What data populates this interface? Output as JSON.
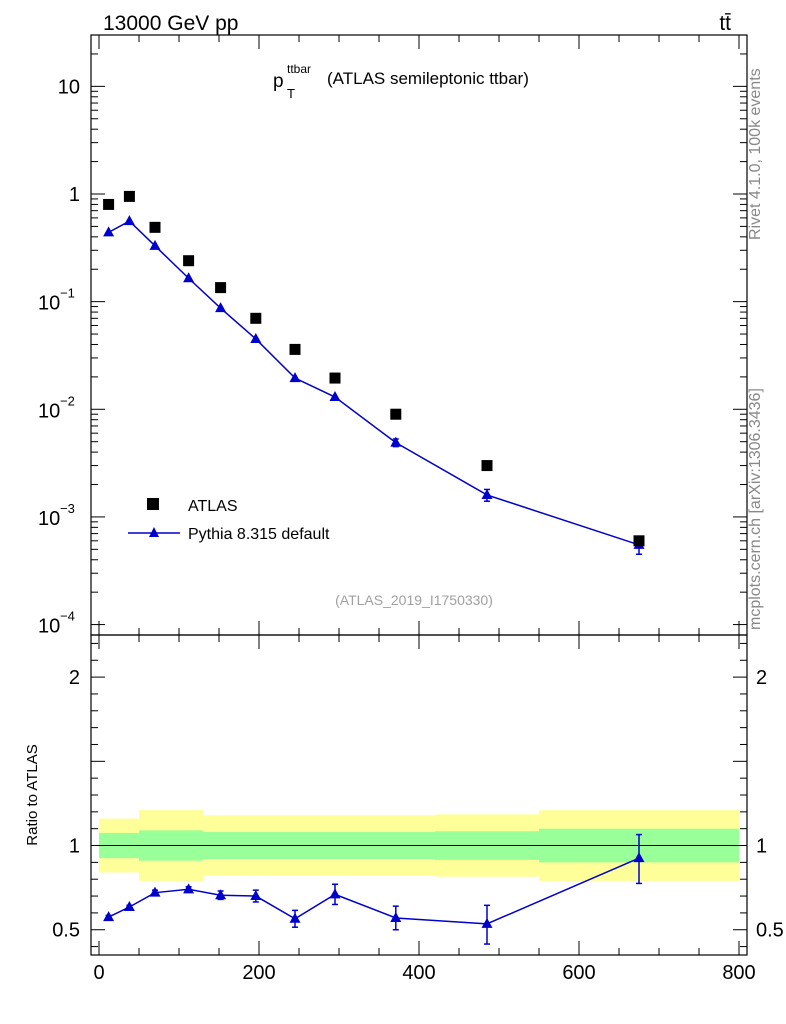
{
  "header": {
    "beam_label": "13000 GeV pp",
    "process_label": "tt̄"
  },
  "plot_title": {
    "var_main": "p",
    "var_sup": "ttbar",
    "var_sub": "T",
    "suffix": "(ATLAS semileptonic ttbar)"
  },
  "side_labels": {
    "rivet": "Rivet 4.1.0,  100k events",
    "mcplots": "mcplots.cern.ch [arXiv:1306.3436]"
  },
  "analysis_id": "(ATLAS_2019_I1750330)",
  "legend": {
    "data_label": "ATLAS",
    "mc_label": "Pythia 8.315 default"
  },
  "ratio_ylabel": "Ratio to ATLAS",
  "colors": {
    "mc": "#0000cc",
    "band_inner": "#99ff99",
    "band_outer": "#ffff99",
    "data": "#000000"
  },
  "chart_data": [
    {
      "type": "scatter",
      "panel": "main",
      "yscale": "log",
      "xlim": [
        -10,
        810
      ],
      "ylim": [
        8e-05,
        30
      ],
      "y_ticks": [
        {
          "value": 10,
          "label": "10"
        },
        {
          "value": 1,
          "label": "1"
        },
        {
          "value": 0.1,
          "base": "10",
          "exp": "−1"
        },
        {
          "value": 0.01,
          "base": "10",
          "exp": "−2"
        },
        {
          "value": 0.001,
          "base": "10",
          "exp": "−3"
        },
        {
          "value": 0.0001,
          "base": "10",
          "exp": "−4"
        }
      ],
      "series": [
        {
          "name": "ATLAS",
          "marker": "square",
          "x": [
            12,
            38,
            70,
            112,
            152,
            196,
            245,
            295,
            371,
            485,
            675
          ],
          "y": [
            0.8,
            0.95,
            0.49,
            0.24,
            0.135,
            0.07,
            0.036,
            0.0195,
            0.009,
            0.003,
            0.0006
          ]
        },
        {
          "name": "Pythia 8.315 default",
          "marker": "triangle",
          "x": [
            12,
            38,
            70,
            112,
            152,
            196,
            245,
            295,
            371,
            485,
            675
          ],
          "y": [
            0.44,
            0.56,
            0.33,
            0.165,
            0.087,
            0.045,
            0.0195,
            0.013,
            0.0049,
            0.0016,
            0.00055
          ],
          "yerr_low": [
            0,
            0,
            0,
            0,
            0,
            0,
            0,
            0,
            0.0004,
            0.0002,
            0.0001
          ],
          "yerr_high": [
            0,
            0,
            0,
            0,
            0,
            0,
            0,
            0,
            0.0004,
            0.0002,
            0.0001
          ]
        }
      ]
    },
    {
      "type": "line",
      "panel": "ratio",
      "xlim": [
        -10,
        810
      ],
      "ylim": [
        0.35,
        2.25
      ],
      "x_ticks": [
        0,
        200,
        400,
        600,
        800
      ],
      "y_ticks": [
        0.5,
        1,
        2
      ],
      "reference_line": 1,
      "bands": {
        "edges": [
          0,
          50,
          130,
          420,
          550,
          800
        ],
        "inner_low": [
          0.925,
          0.91,
          0.92,
          0.915,
          0.9
        ],
        "inner_high": [
          1.075,
          1.09,
          1.08,
          1.085,
          1.1
        ],
        "outer_low": [
          0.84,
          0.79,
          0.82,
          0.815,
          0.79
        ],
        "outer_high": [
          1.16,
          1.21,
          1.18,
          1.185,
          1.21
        ]
      },
      "series": [
        {
          "name": "Pythia 8.315 default",
          "x": [
            12,
            38,
            70,
            112,
            152,
            196,
            245,
            295,
            371,
            485,
            675
          ],
          "y": [
            0.575,
            0.635,
            0.72,
            0.74,
            0.705,
            0.7,
            0.565,
            0.71,
            0.57,
            0.535,
            0.925
          ],
          "yerr_low": [
            0.01,
            0.01,
            0.015,
            0.015,
            0.025,
            0.035,
            0.05,
            0.06,
            0.07,
            0.12,
            0.15
          ],
          "yerr_high": [
            0.01,
            0.01,
            0.015,
            0.015,
            0.025,
            0.035,
            0.05,
            0.06,
            0.07,
            0.11,
            0.14
          ]
        }
      ]
    }
  ]
}
